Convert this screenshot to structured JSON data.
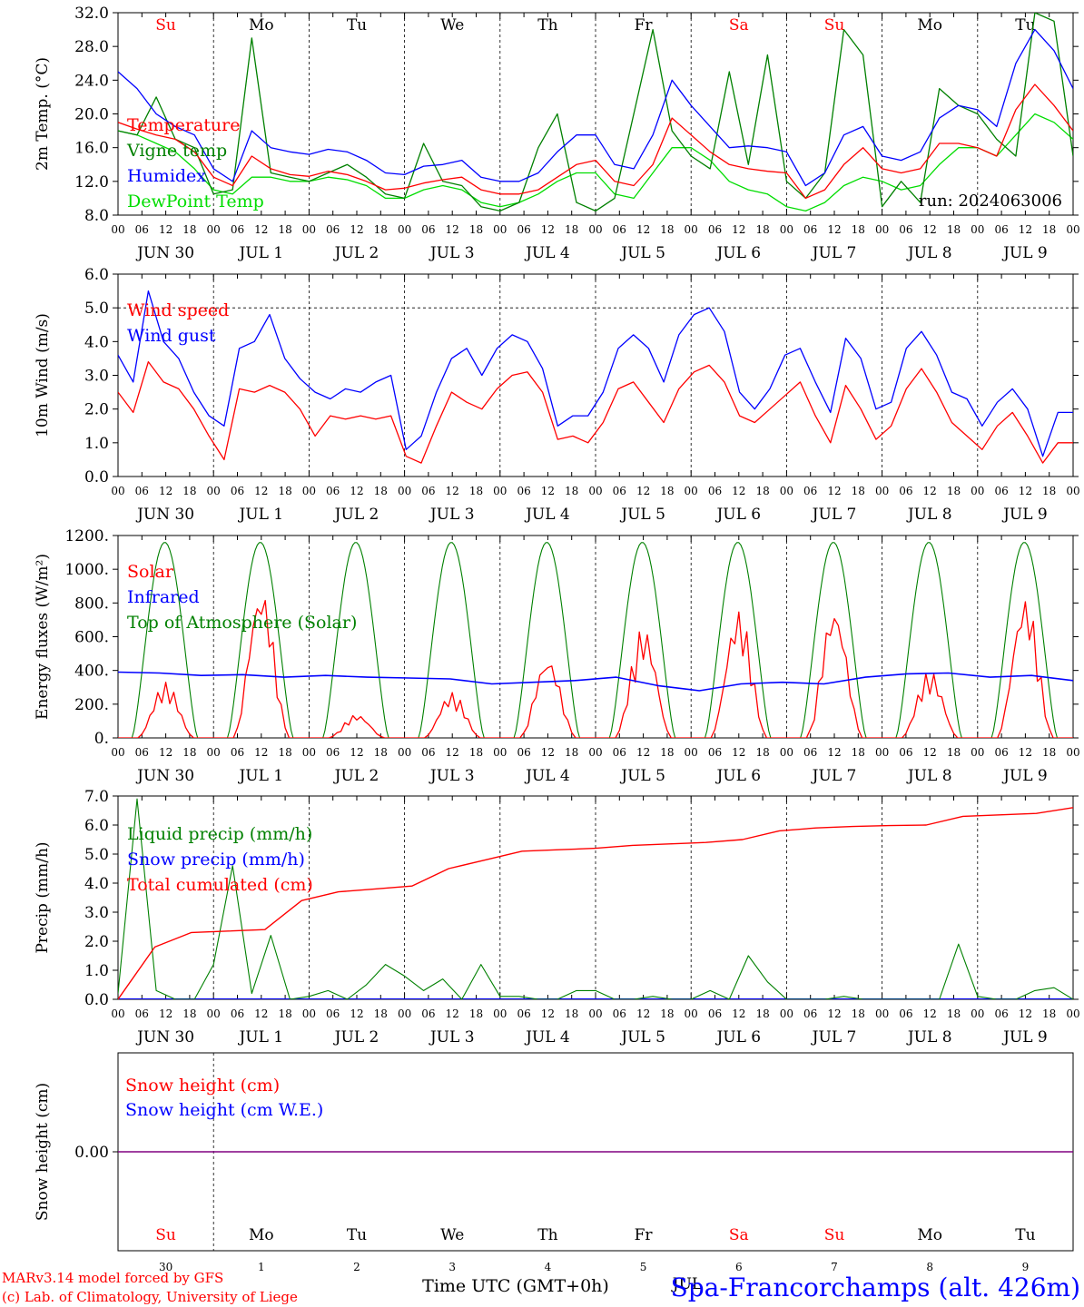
{
  "colors": {
    "red": "#ff0000",
    "green": "#008000",
    "blue": "#0000ff",
    "lightgreen": "#00dd00",
    "purple": "#800080",
    "axis": "#000000"
  },
  "days": {
    "weekday_labels": [
      "Su",
      "Mo",
      "Tu",
      "We",
      "Th",
      "Fr",
      "Sa",
      "Su",
      "Mo",
      "Tu"
    ],
    "weekend_flags": [
      true,
      false,
      false,
      false,
      false,
      false,
      true,
      true,
      false,
      false
    ],
    "date_labels": [
      "JUN 30",
      "JUL  1",
      "JUL  2",
      "JUL  3",
      "JUL  4",
      "JUL  5",
      "JUL  6",
      "JUL  7",
      "JUL  8",
      "JUL  9"
    ],
    "day_numbers": [
      "30",
      "1",
      "2",
      "3",
      "4",
      "5",
      "6",
      "7",
      "8",
      "9"
    ],
    "hour_ticks": [
      "00",
      "06",
      "12",
      "18"
    ],
    "final_tick": "00"
  },
  "chart_data": [
    {
      "type": "line",
      "ylabel": "2m Temp. (°C)",
      "ylim": [
        8,
        32
      ],
      "yticks": [
        "8.0",
        "12.0",
        "16.0",
        "20.0",
        "24.0",
        "28.0",
        "32.0"
      ],
      "annotation": "run: 2024063006",
      "series": [
        {
          "name": "Temperature",
          "color": "red",
          "values": [
            19,
            18.2,
            17.5,
            17,
            15.5,
            12.5,
            11.5,
            15,
            13.5,
            12.8,
            12.6,
            13.2,
            12.8,
            12,
            11,
            11.2,
            11.8,
            12.2,
            12.5,
            11,
            10.5,
            10.5,
            11,
            12.5,
            14,
            14.5,
            12,
            11.5,
            14,
            19.5,
            17.5,
            15.5,
            14,
            13.5,
            13.2,
            13,
            10,
            11,
            14,
            16,
            13.5,
            13,
            13.5,
            16.5,
            16.5,
            16,
            15,
            20.5,
            23.5,
            21,
            18
          ]
        },
        {
          "name": "Vigne temp",
          "color": "green",
          "values": [
            18,
            17.5,
            22,
            17,
            16,
            10.5,
            11,
            29,
            13,
            12.5,
            12,
            13,
            14,
            12.5,
            10.5,
            10,
            16.5,
            12,
            11.5,
            9,
            8.5,
            9.5,
            16,
            20,
            9.5,
            8.5,
            10,
            20,
            30,
            18,
            15,
            13.5,
            25,
            14,
            27,
            12,
            10,
            13,
            30,
            27,
            9,
            12,
            9.5,
            23,
            21,
            20,
            17,
            15,
            32,
            31,
            15
          ]
        },
        {
          "name": "Humidex",
          "color": "blue",
          "values": [
            25,
            23,
            20,
            18.5,
            17.5,
            13.5,
            12,
            18,
            16,
            15.5,
            15.2,
            15.8,
            15.5,
            14.5,
            13,
            12.8,
            13.8,
            14,
            14.5,
            12.5,
            12,
            12,
            13,
            15.5,
            17.5,
            17.5,
            14,
            13.5,
            17.5,
            24,
            21,
            18.5,
            16,
            16.2,
            16,
            15.5,
            11.5,
            13,
            17.5,
            18.5,
            15,
            14.5,
            15.5,
            19.5,
            21,
            20.5,
            18.5,
            26,
            30,
            27.5,
            23
          ]
        },
        {
          "name": "DewPoint Temp",
          "color": "lightgreen",
          "values": [
            18,
            17.5,
            16.5,
            15.5,
            13.5,
            11,
            10.5,
            12.5,
            12.5,
            12,
            12,
            12.5,
            12.2,
            11.5,
            10,
            10,
            11,
            11.5,
            11,
            9.5,
            9,
            9.5,
            10.5,
            12,
            13,
            13,
            10.5,
            10,
            13,
            16,
            16,
            14.5,
            12,
            11,
            10.5,
            9,
            8.5,
            9.5,
            11.5,
            12.5,
            12,
            11,
            11.5,
            14,
            16,
            16,
            15,
            17.5,
            20,
            19,
            17
          ]
        }
      ]
    },
    {
      "type": "line",
      "ylabel": "10m Wind (m/s)",
      "ylim": [
        0,
        6
      ],
      "yticks": [
        "0.0",
        "1.0",
        "2.0",
        "3.0",
        "4.0",
        "5.0",
        "6.0"
      ],
      "reference_line": 5,
      "series": [
        {
          "name": "Wind speed",
          "color": "red",
          "values": [
            2.5,
            1.9,
            3.4,
            2.8,
            2.6,
            2,
            1.2,
            0.5,
            2.6,
            2.5,
            2.7,
            2.5,
            2,
            1.2,
            1.8,
            1.7,
            1.8,
            1.7,
            1.8,
            0.6,
            0.4,
            1.5,
            2.5,
            2.2,
            2,
            2.6,
            3,
            3.1,
            2.5,
            1.1,
            1.2,
            1,
            1.6,
            2.6,
            2.8,
            2.2,
            1.6,
            2.6,
            3.1,
            3.3,
            2.8,
            1.8,
            1.6,
            2,
            2.4,
            2.8,
            1.8,
            1,
            2.7,
            2,
            1.1,
            1.5,
            2.6,
            3.2,
            2.5,
            1.6,
            1.2,
            0.8,
            1.5,
            1.9,
            1.2,
            0.4,
            1.0,
            1.0
          ]
        },
        {
          "name": "Wind gust",
          "color": "blue",
          "values": [
            3.6,
            2.8,
            5.5,
            4.0,
            3.5,
            2.5,
            1.8,
            1.5,
            3.8,
            4.0,
            4.8,
            3.5,
            2.9,
            2.5,
            2.3,
            2.6,
            2.5,
            2.8,
            3.0,
            0.8,
            1.2,
            2.5,
            3.5,
            3.8,
            3.0,
            3.8,
            4.2,
            4.0,
            3.2,
            1.5,
            1.8,
            1.8,
            2.5,
            3.8,
            4.2,
            3.8,
            2.8,
            4.2,
            4.8,
            5.0,
            4.3,
            2.5,
            2.0,
            2.6,
            3.6,
            3.8,
            2.8,
            1.9,
            4.1,
            3.5,
            2.0,
            2.2,
            3.8,
            4.3,
            3.6,
            2.5,
            2.3,
            1.5,
            2.2,
            2.6,
            2.0,
            0.6,
            1.9,
            1.9
          ]
        }
      ]
    },
    {
      "type": "line",
      "ylabel": "Energy fluxes (W/m²)",
      "ylim": [
        0,
        1200
      ],
      "yticks": [
        "0.",
        "200.",
        "400.",
        "600.",
        "800.",
        "1000.",
        "1200."
      ],
      "series": [
        {
          "name": "Solar",
          "color": "red",
          "daily_peaks": [
            330,
            890,
            140,
            270,
            480,
            660,
            760,
            780,
            400,
            840
          ]
        },
        {
          "name": "Infrared",
          "color": "blue",
          "values": [
            390,
            385,
            370,
            375,
            360,
            370,
            360,
            355,
            350,
            320,
            330,
            340,
            360,
            310,
            280,
            320,
            330,
            320,
            360,
            380,
            385,
            360,
            370,
            340
          ]
        },
        {
          "name": "Top of Atmosphere (Solar)",
          "color": "green",
          "daily_peak": 1160
        }
      ]
    },
    {
      "type": "line",
      "ylabel": "Precip (mm/h)",
      "ylim": [
        0,
        7
      ],
      "yticks": [
        "0.0",
        "1.0",
        "2.0",
        "3.0",
        "4.0",
        "5.0",
        "6.0",
        "7.0"
      ],
      "series": [
        {
          "name": "Liquid precip (mm/h)",
          "color": "green",
          "values": [
            0.2,
            6.9,
            0.3,
            0,
            0,
            1.2,
            4.6,
            0.2,
            2.2,
            0,
            0.1,
            0.3,
            0,
            0.5,
            1.2,
            0.8,
            0.3,
            0.7,
            0,
            1.2,
            0.1,
            0.1,
            0,
            0,
            0.3,
            0.3,
            0,
            0,
            0.1,
            0,
            0,
            0.3,
            0,
            1.5,
            0.6,
            0,
            0,
            0,
            0.1,
            0,
            0,
            0,
            0,
            0,
            1.9,
            0.1,
            0,
            0,
            0.3,
            0.4,
            0
          ]
        },
        {
          "name": "Snow precip (mm/h)",
          "color": "blue",
          "values": [
            0,
            0
          ]
        },
        {
          "name": "Total cumulated (cm)",
          "color": "red",
          "values": [
            0,
            1.8,
            2.3,
            2.35,
            2.4,
            3.4,
            3.7,
            3.8,
            3.9,
            4.5,
            4.8,
            5.1,
            5.15,
            5.2,
            5.3,
            5.35,
            5.4,
            5.5,
            5.8,
            5.9,
            5.95,
            5.98,
            6.0,
            6.3,
            6.35,
            6.4,
            6.6
          ]
        }
      ]
    },
    {
      "type": "line",
      "ylabel": "Snow height (cm)",
      "yticks": [
        "0.00"
      ],
      "series": [
        {
          "name": "Snow height (cm)",
          "color": "red",
          "values": [
            0,
            0
          ]
        },
        {
          "name": "Snow height (cm W.E.)",
          "color": "blue",
          "values": [
            0,
            0
          ]
        }
      ]
    }
  ],
  "footer": {
    "model_line": "MARv3.14 model forced by GFS",
    "credit_line": "(c) Lab. of Climatology, University of Liege",
    "xlabel": "Time UTC (GMT+0h)",
    "month_label": "JUL",
    "station": "Spa-Francorchamps (alt. 426m)"
  }
}
